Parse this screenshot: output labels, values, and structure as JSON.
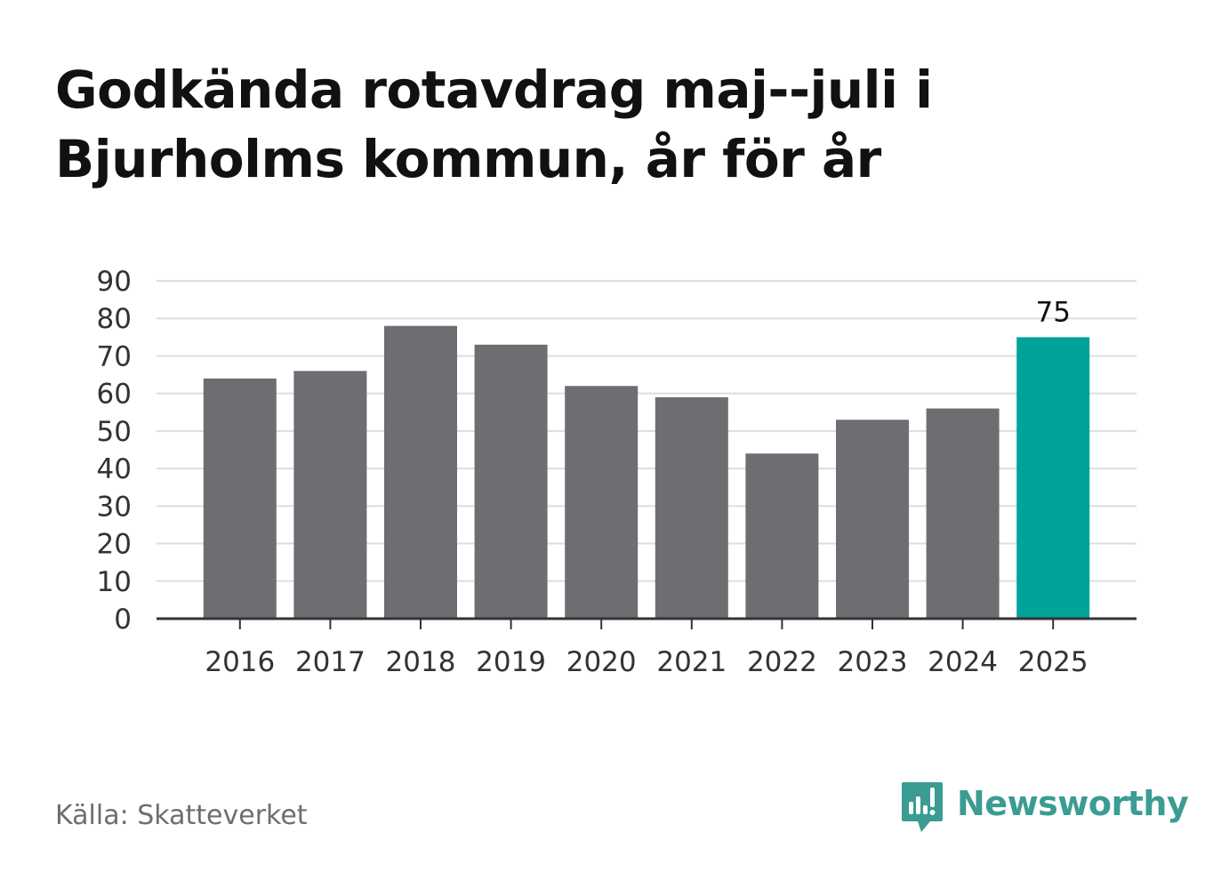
{
  "title_line1": "Godkända rotavdrag maj--juli i",
  "title_line2": "Bjurholms kommun, år för år",
  "source": "Källa: Skatteverket",
  "brand": {
    "name": "Newsworthy",
    "icon": "newsworthy-logo-icon",
    "color": "#3a9c92"
  },
  "colors": {
    "bar": "#6e6d72",
    "highlight": "#00a39a",
    "grid": "#dddddd",
    "axis": "#333333"
  },
  "chart_data": {
    "type": "bar",
    "title": "Godkända rotavdrag maj--juli i Bjurholms kommun, år för år",
    "xlabel": "",
    "ylabel": "",
    "categories": [
      "2016",
      "2017",
      "2018",
      "2019",
      "2020",
      "2021",
      "2022",
      "2023",
      "2024",
      "2025"
    ],
    "values": [
      64,
      66,
      78,
      73,
      62,
      59,
      44,
      53,
      56,
      75
    ],
    "highlight_index": 9,
    "data_labels": [
      {
        "index": 9,
        "text": "75"
      }
    ],
    "ylim": [
      0,
      90
    ],
    "yticks": [
      "0",
      "10",
      "20",
      "30",
      "40",
      "50",
      "60",
      "70",
      "80",
      "90"
    ],
    "grid": true,
    "legend": "none"
  }
}
